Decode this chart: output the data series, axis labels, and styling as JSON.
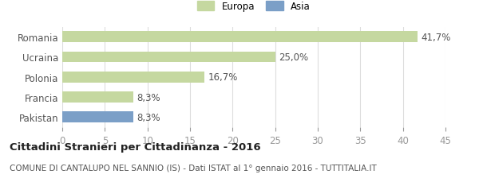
{
  "categories": [
    "Pakistan",
    "Francia",
    "Polonia",
    "Ucraina",
    "Romania"
  ],
  "values": [
    8.3,
    8.3,
    16.7,
    25.0,
    41.7
  ],
  "labels": [
    "8,3%",
    "8,3%",
    "16,7%",
    "25,0%",
    "41,7%"
  ],
  "colors": [
    "#7b9fc7",
    "#c5d8a0",
    "#c5d8a0",
    "#c5d8a0",
    "#c5d8a0"
  ],
  "legend": [
    {
      "label": "Europa",
      "color": "#c5d8a0"
    },
    {
      "label": "Asia",
      "color": "#7b9fc7"
    }
  ],
  "xlim": [
    0,
    45
  ],
  "xticks": [
    0,
    5,
    10,
    15,
    20,
    25,
    30,
    35,
    40,
    45
  ],
  "title_bold": "Cittadini Stranieri per Cittadinanza - 2016",
  "subtitle": "COMUNE DI CANTALUPO NEL SANNIO (IS) - Dati ISTAT al 1° gennaio 2016 - TUTTITALIA.IT",
  "bar_height": 0.55,
  "background_color": "#ffffff",
  "grid_color": "#dddddd",
  "label_fontsize": 8.5,
  "tick_fontsize": 8.5,
  "title_fontsize": 9.5,
  "subtitle_fontsize": 7.5
}
